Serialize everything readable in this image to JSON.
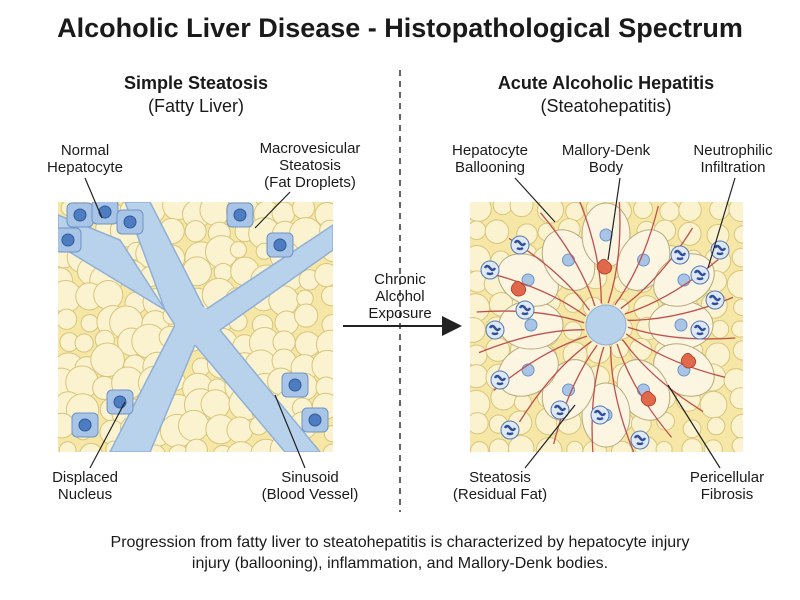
{
  "title": "Alcoholic Liver Disease - Histopathological Spectrum",
  "left_panel": {
    "title": "Simple Steatosis",
    "subtitle": "(Fatty Liver)",
    "labels": [
      {
        "lines": [
          "Normal",
          "Hepatocyte"
        ]
      },
      {
        "lines": [
          "Macrovesicular",
          "Steatosis",
          "(Fat Droplets)"
        ]
      },
      {
        "lines": [
          "Displaced",
          "Nucleus"
        ]
      },
      {
        "lines": [
          "Sinusoid",
          "(Blood Vessel)"
        ]
      }
    ]
  },
  "transition": {
    "lines": [
      "Chronic",
      "Alcohol",
      "Exposure"
    ]
  },
  "right_panel": {
    "title": "Acute Alcoholic Hepatitis",
    "subtitle": "(Steatohepatitis)",
    "labels": [
      {
        "lines": [
          "Hepatocyte",
          "Ballooning"
        ]
      },
      {
        "lines": [
          "Mallory-Denk",
          "Body"
        ]
      },
      {
        "lines": [
          "Neutrophilic",
          "Infiltration"
        ]
      },
      {
        "lines": [
          "Steatosis",
          "(Residual Fat)"
        ]
      },
      {
        "lines": [
          "Pericellular",
          "Fibrosis"
        ]
      }
    ]
  },
  "caption": {
    "lines": [
      "Progression from fatty liver to steatohepatitis is characterized by hepatocyte injury",
      "injury (ballooning), inflammation, and Mallory-Denk bodies."
    ]
  }
}
